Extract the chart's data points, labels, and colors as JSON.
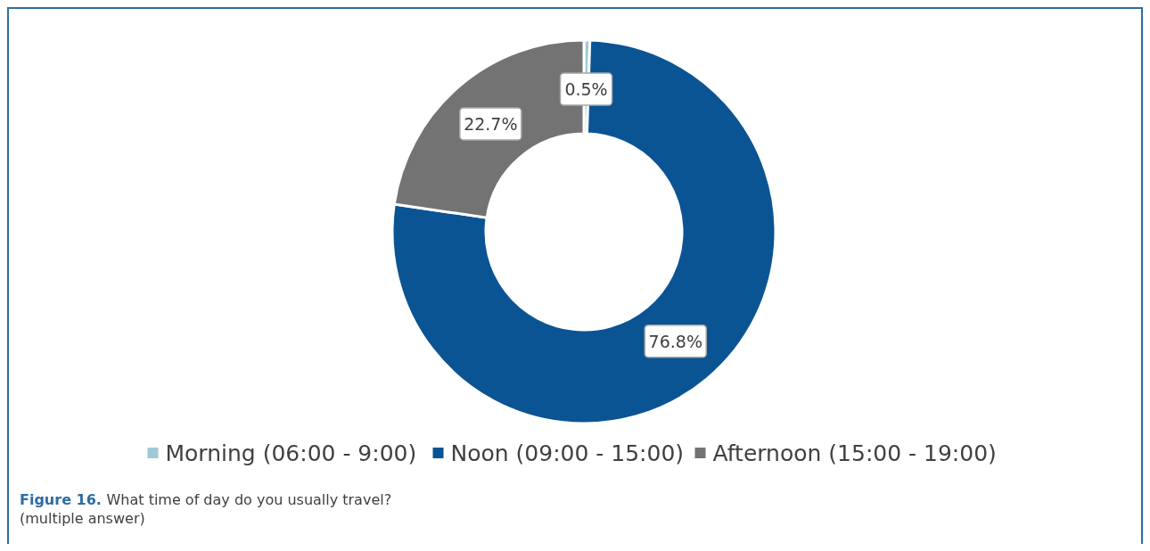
{
  "chart_data": {
    "type": "donut",
    "categories": [
      "Morning (06:00 - 9:00)",
      "Noon (09:00 - 15:00)",
      "Afternoon (15:00 - 19:00)"
    ],
    "values": [
      0.5,
      76.8,
      22.7
    ],
    "colors": [
      "#9ecad6",
      "#0a5494",
      "#737373"
    ],
    "value_labels": [
      "0.5%",
      "76.8%",
      "22.7%"
    ],
    "legend": "bottom",
    "annotations": [
      "Figure 16.",
      "What time of day do you usually travel? (multiple answer)"
    ]
  }
}
